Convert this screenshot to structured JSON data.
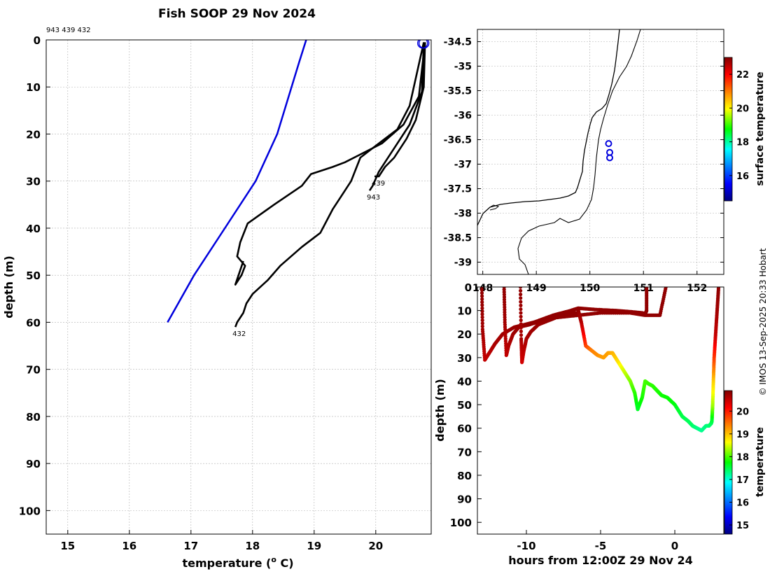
{
  "title": "Fish SOOP 29 Nov 2024",
  "copyright": "© IMOS 13-Sep-2025 20:33 Hobart",
  "colors": {
    "profile": "#000000",
    "climatology": "#0000dd",
    "marker": "#0000dd",
    "grid": "#b0b0b0"
  },
  "chart_data": [
    {
      "type": "line",
      "panel": "profile",
      "xlabel": "temperature (o C)",
      "xlabel_main": "temperature (",
      "xlabel_sup": "o",
      "xlabel_end": " C)",
      "ylabel": "depth (m)",
      "id_label": "943 439 432",
      "xlim": [
        14.65,
        20.9
      ],
      "ylim": [
        105,
        0
      ],
      "xticks": [
        15,
        16,
        17,
        18,
        19,
        20
      ],
      "yticks": [
        0,
        10,
        20,
        30,
        40,
        50,
        60,
        70,
        80,
        90,
        100
      ],
      "grid": true,
      "series": [
        {
          "style": "climatology",
          "x": [
            18.87,
            18.75,
            18.4,
            18.05,
            17.55,
            17.05,
            16.62
          ],
          "y": [
            0,
            5,
            20,
            30,
            40,
            50,
            60
          ]
        },
        {
          "label": "439",
          "x": [
            20.8,
            20.78,
            20.65,
            20.5,
            20.3,
            20.15,
            20.05,
            19.98
          ],
          "y": [
            0.5,
            10,
            17,
            21,
            25,
            27,
            29,
            29
          ]
        },
        {
          "label": "943",
          "x": [
            20.78,
            20.75,
            20.55,
            20.35,
            20.2,
            20.05,
            19.95,
            19.9
          ],
          "y": [
            0.5,
            11,
            18,
            22,
            25,
            28,
            31,
            32
          ]
        },
        {
          "label": "",
          "x": [
            20.8,
            20.7,
            20.45,
            20.1,
            19.8,
            19.5,
            19.3,
            18.95,
            18.8,
            18.35,
            17.92,
            17.8,
            17.75,
            17.88,
            17.82,
            17.72,
            17.85
          ],
          "y": [
            0.5,
            12,
            18,
            22,
            24,
            26,
            27,
            28.5,
            31,
            35,
            39,
            43,
            46,
            48,
            50,
            52,
            47
          ]
        },
        {
          "label": "432",
          "x": [
            20.78,
            20.55,
            20.35,
            20.05,
            19.75,
            19.6,
            19.45,
            19.3,
            19.1,
            18.8,
            18.45,
            18.25,
            18.0,
            17.9,
            17.85,
            17.75,
            17.72
          ],
          "y": [
            0.5,
            14,
            19,
            22,
            25,
            30,
            33,
            36,
            41,
            44,
            48,
            51,
            54,
            56,
            58,
            60,
            61
          ]
        }
      ]
    },
    {
      "type": "scatter",
      "panel": "map",
      "xlim": [
        147.9,
        152.5
      ],
      "ylim": [
        -39.25,
        -34.25
      ],
      "xticks": [
        148,
        149,
        150,
        151,
        152
      ],
      "xtick_labels": [
        "148",
        "149",
        "150",
        "151",
        "152"
      ],
      "yticks": [
        -34.5,
        -35,
        -35.5,
        -36,
        -36.5,
        -37,
        -37.5,
        -38,
        -38.5,
        -39
      ],
      "ytick_labels": [
        "-34.5",
        "-35",
        "-35.5",
        "-36",
        "-36.5",
        "-37",
        "-37.5",
        "-38",
        "-38.5",
        "-39"
      ],
      "points": [
        {
          "lon": 150.35,
          "lat": -36.58
        },
        {
          "lon": 150.37,
          "lat": -36.76
        },
        {
          "lon": 150.37,
          "lat": -36.87
        }
      ],
      "colorbar": {
        "label": "surface temperature",
        "ticks": [
          16,
          18,
          20,
          22
        ],
        "range": [
          14.5,
          23.0
        ]
      }
    },
    {
      "type": "scatter",
      "panel": "section",
      "xlabel": "hours from 12:00Z 29 Nov 24",
      "ylabel": "depth (m)",
      "xlim": [
        -13.3,
        3.3
      ],
      "ylim": [
        105,
        0
      ],
      "xticks": [
        -10,
        -5,
        0
      ],
      "xtick_labels": [
        "-10",
        "-5",
        "0"
      ],
      "yticks": [
        0,
        10,
        20,
        30,
        40,
        50,
        60,
        70,
        80,
        90,
        100
      ],
      "ytick_labels": [
        "0",
        "10",
        "20",
        "30",
        "40",
        "50",
        "60",
        "70",
        "80",
        "90",
        "100"
      ],
      "colorbar": {
        "label": "temperature",
        "ticks": [
          15,
          16,
          17,
          18,
          19,
          20
        ],
        "range": [
          14.6,
          20.9
        ]
      },
      "casts": [
        {
          "t": [
            -13.0,
            -12.95,
            -12.8,
            -12.5,
            -12.1,
            -11.6,
            -10.8,
            -9.5,
            -8.2,
            -7.0,
            -6.5
          ],
          "d": [
            0,
            18,
            31,
            28,
            24,
            20,
            17,
            15,
            12,
            10,
            9
          ],
          "temp": [
            20.8,
            20.7,
            20.5,
            20.55,
            20.65,
            20.7,
            20.75,
            20.8,
            20.8,
            20.8,
            20.8
          ]
        },
        {
          "t": [
            -11.5,
            -11.45,
            -11.35,
            -11.2,
            -10.9,
            -10.5,
            -9.8,
            -8.8,
            -7.8,
            -7.0,
            -6.5
          ],
          "d": [
            0,
            15,
            29,
            25,
            20,
            17,
            16,
            14,
            12,
            11,
            11
          ],
          "temp": [
            20.8,
            20.7,
            20.5,
            20.6,
            20.7,
            20.75,
            20.8,
            20.8,
            20.8,
            20.8,
            20.8
          ]
        },
        {
          "t": [
            -10.4,
            -10.35,
            -10.3,
            -10.2,
            -10.0,
            -9.7,
            -9.2,
            -8.0,
            -6.5,
            -5.0,
            -3.0,
            -2.0,
            -1.0,
            -0.6
          ],
          "d": [
            0,
            22,
            32,
            28,
            22,
            19,
            16,
            13,
            12,
            11,
            11,
            12,
            12,
            0
          ],
          "temp": [
            20.8,
            20.65,
            20.4,
            20.5,
            20.65,
            20.7,
            20.75,
            20.8,
            20.8,
            20.8,
            20.8,
            20.8,
            20.8,
            20.8
          ]
        },
        {
          "t": [
            -6.5,
            -5.5,
            -4.0,
            -3.0,
            -2.2,
            -2.0,
            -1.9,
            -1.9
          ],
          "d": [
            9,
            9.5,
            10,
            10.5,
            11,
            11.5,
            10,
            0
          ],
          "temp": [
            20.8,
            20.8,
            20.8,
            20.8,
            20.8,
            20.8,
            20.8,
            20.8
          ]
        },
        {
          "t": [
            -6.5,
            -6.3,
            -6.0,
            -5.6,
            -5.2,
            -4.8,
            -4.5,
            -4.2,
            -3.9,
            -3.6,
            -3.3,
            -3.0,
            -2.7,
            -2.5,
            -2.2,
            -2.0,
            -1.8,
            -1.5,
            -1.2,
            -0.9,
            -0.5,
            0.0,
            0.5,
            0.9,
            1.2,
            1.5,
            1.8,
            2.1,
            2.3,
            2.45,
            2.5,
            2.55,
            2.6,
            2.65,
            2.75,
            2.85,
            2.95
          ],
          "d": [
            10,
            15,
            25,
            27,
            29,
            30,
            28,
            28,
            31,
            34,
            37,
            40,
            45,
            52,
            47,
            40,
            41,
            42,
            44,
            46,
            47,
            50,
            55,
            57,
            59,
            60,
            61,
            59,
            59,
            58,
            57,
            50,
            40,
            30,
            20,
            10,
            0
          ],
          "temp": [
            20.8,
            20.6,
            19.8,
            19.4,
            19.3,
            19.2,
            19.2,
            19.1,
            18.9,
            18.6,
            18.4,
            18.2,
            17.9,
            17.6,
            17.8,
            18.0,
            17.95,
            17.9,
            17.85,
            17.8,
            17.78,
            17.7,
            17.5,
            17.45,
            17.4,
            17.3,
            17.25,
            17.3,
            17.35,
            17.4,
            17.5,
            18.3,
            18.9,
            19.8,
            20.5,
            20.7,
            20.8
          ]
        }
      ]
    }
  ]
}
